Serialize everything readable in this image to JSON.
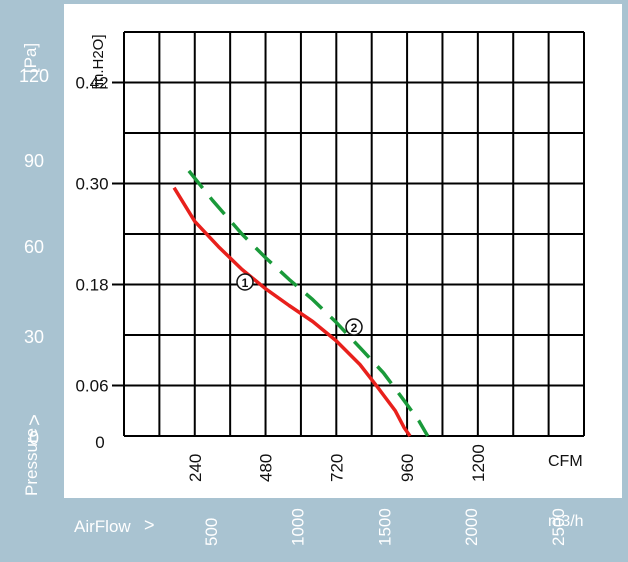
{
  "colors": {
    "frame": "#a9c3d1",
    "grid": "#000000",
    "curve1": "#e8201c",
    "curve2": "#1a9a3a",
    "text_white": "#ffffff",
    "text_dark": "#111111"
  },
  "labels": {
    "pa_unit": "[Pa]",
    "inh2o_unit": "[in.H2O]",
    "pressure": "Pressure",
    "airflow": "AirFlow",
    "cfm_unit": "CFM",
    "m3h_unit": "m3/h",
    "curve1_marker": "①",
    "curve2_marker": "②"
  },
  "chart_data": {
    "type": "line",
    "title": "",
    "xlabel": "AirFlow",
    "ylabel": "Pressure",
    "grid": true,
    "legend": "none",
    "x_axis_cfm": {
      "unit": "CFM",
      "ticks": [
        "240",
        "480",
        "720",
        "960",
        "1200"
      ],
      "values": [
        240,
        480,
        720,
        960,
        1200
      ]
    },
    "x_axis_m3h": {
      "unit": "m3/h",
      "ticks": [
        "500",
        "1000",
        "1500",
        "2000",
        "2500"
      ],
      "values": [
        500,
        1000,
        1500,
        2000,
        2500
      ]
    },
    "y_axis_pa": {
      "unit": "[Pa]",
      "ticks": [
        "0",
        "30",
        "60",
        "90",
        "120"
      ],
      "values": [
        0,
        30,
        60,
        90,
        120
      ]
    },
    "y_axis_inh2o": {
      "unit": "[in.H2O]",
      "ticks": [
        "0.06",
        "0.18",
        "0.30",
        "0.42"
      ],
      "values": [
        0.06,
        0.18,
        0.3,
        0.42
      ]
    },
    "xlim_cfm": [
      0,
      1560
    ],
    "ylim_inh2o": [
      0,
      0.48
    ],
    "series": [
      {
        "marker": "①",
        "style": "solid",
        "x": [
          170,
          240,
          320,
          400,
          480,
          560,
          640,
          720,
          800,
          860,
          920,
          950,
          970
        ],
        "y": [
          0.295,
          0.255,
          0.225,
          0.198,
          0.175,
          0.155,
          0.136,
          0.113,
          0.085,
          0.058,
          0.03,
          0.01,
          0.0
        ]
      },
      {
        "marker": "②",
        "style": "dashed",
        "x": [
          220,
          300,
          400,
          480,
          560,
          640,
          720,
          800,
          880,
          950,
          1000,
          1030
        ],
        "y": [
          0.315,
          0.28,
          0.24,
          0.212,
          0.186,
          0.162,
          0.135,
          0.105,
          0.075,
          0.042,
          0.018,
          0.0
        ]
      }
    ]
  }
}
